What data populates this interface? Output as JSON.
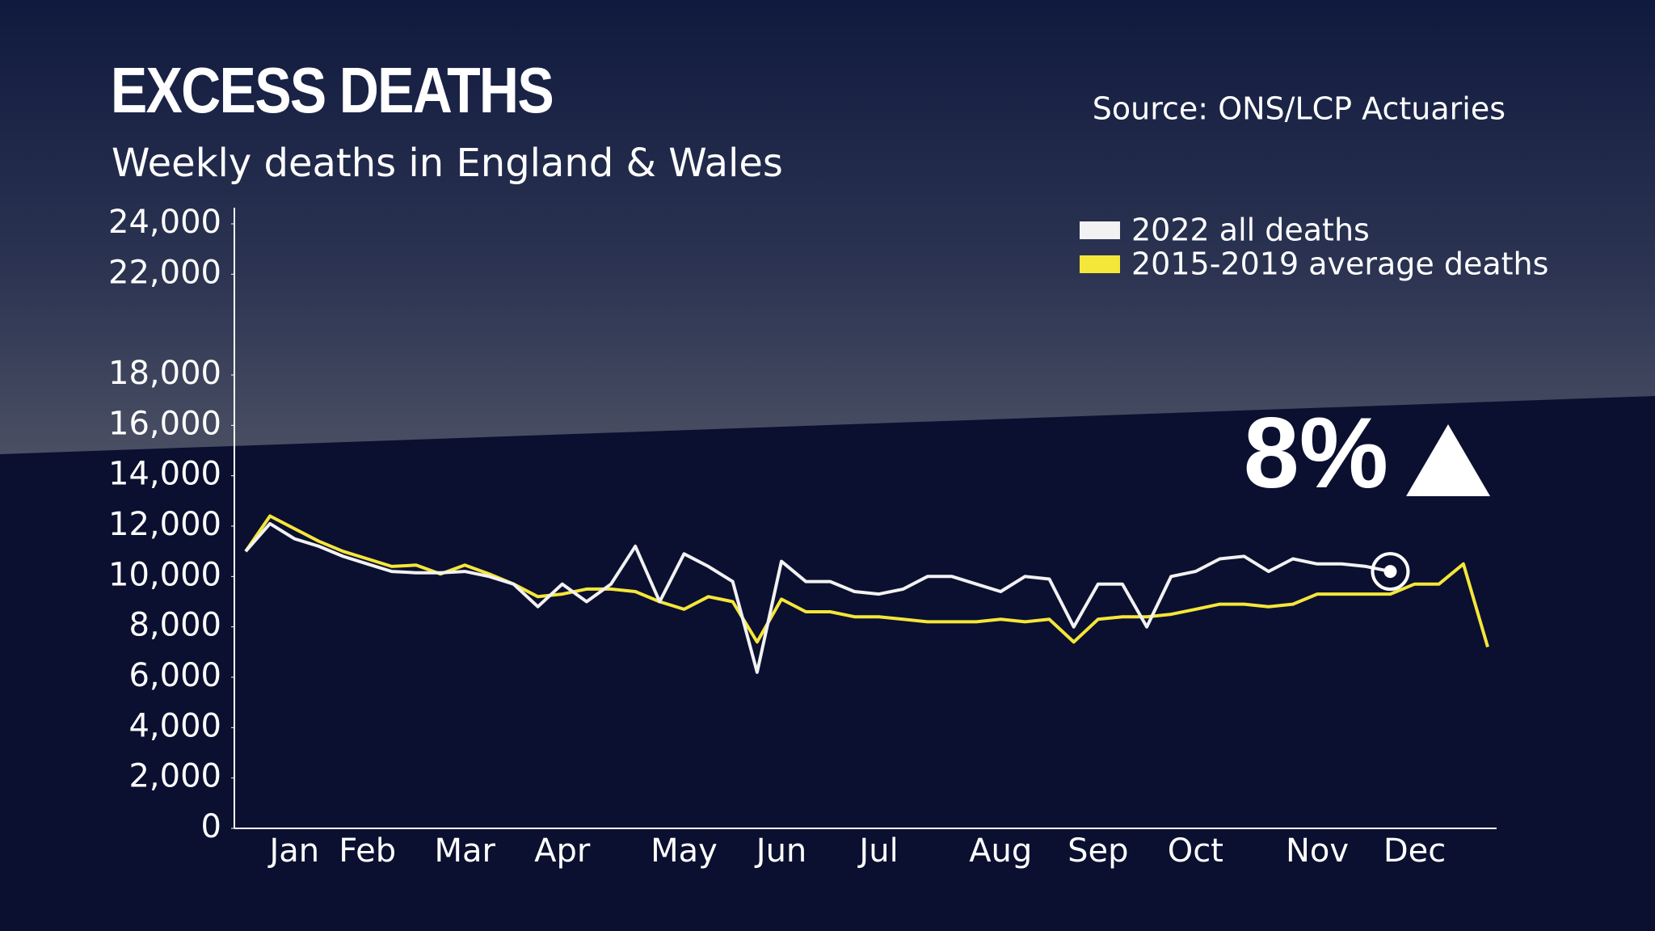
{
  "chart_data": {
    "type": "line",
    "title": "EXCESS DEATHS",
    "subtitle": "Weekly deaths in England & Wales",
    "source": "Source: ONS/LCP Actuaries",
    "annotation": "8%",
    "categories": [
      null,
      null,
      "Jan",
      null,
      null,
      "Feb",
      null,
      null,
      null,
      "Mar",
      null,
      null,
      null,
      "Apr",
      null,
      null,
      null,
      null,
      "May",
      null,
      null,
      null,
      "Jun",
      null,
      null,
      null,
      "Jul",
      null,
      null,
      null,
      null,
      "Aug",
      null,
      null,
      null,
      "Sep",
      null,
      null,
      null,
      "Oct",
      null,
      null,
      null,
      null,
      "Nov",
      null,
      null,
      null,
      "Dec",
      null,
      null,
      null
    ],
    "series": [
      {
        "name": "2022 all deaths",
        "color": "#f2f2f2",
        "values": [
          11000,
          12100,
          11500,
          11200,
          10800,
          10500,
          10200,
          10150,
          10150,
          10200,
          10000,
          9700,
          8800,
          9700,
          9000,
          9700,
          11200,
          9000,
          10900,
          10400,
          9800,
          6200,
          10600,
          9800,
          9800,
          9400,
          9300,
          9500,
          10000,
          10000,
          9700,
          9400,
          10000,
          9900,
          8000,
          9700,
          9700,
          8000,
          10000,
          10200,
          10700,
          10800,
          10200,
          10700,
          10500,
          10500,
          10400,
          10200,
          null,
          null,
          null,
          null
        ]
      },
      {
        "name": "2015-2019 average deaths",
        "color": "#f5e63a",
        "values": [
          11000,
          12400,
          11900,
          11400,
          11000,
          10700,
          10400,
          10450,
          10100,
          10450,
          10100,
          9700,
          9200,
          9300,
          9500,
          9500,
          9400,
          9000,
          8700,
          9200,
          9000,
          7400,
          9100,
          8600,
          8600,
          8400,
          8400,
          8300,
          8200,
          8200,
          8200,
          8300,
          8200,
          8300,
          7400,
          8300,
          8400,
          8400,
          8500,
          8700,
          8900,
          8900,
          8800,
          8900,
          9300,
          9300,
          9300,
          9300,
          9700,
          9700,
          10500,
          7200
        ]
      }
    ],
    "ylim": [
      0,
      24000
    ],
    "yticks": [
      0,
      {
        "value": 2000,
        "label": "2,000"
      },
      {
        "value": 4000,
        "label": "4,000"
      },
      {
        "value": 6000,
        "label": "6,000"
      },
      {
        "value": 8000,
        "label": "8,000"
      },
      {
        "value": 10000,
        "label": "10,000"
      },
      {
        "value": 12000,
        "label": "12,000"
      },
      {
        "value": 14000,
        "label": "14,000"
      },
      {
        "value": 16000,
        "label": "16,000"
      },
      {
        "value": 18000,
        "label": "18,000"
      },
      {
        "value": 22000,
        "label": "22,000"
      },
      {
        "value": 24000,
        "label": "24,000"
      }
    ],
    "legend": "top right",
    "grid": false
  }
}
